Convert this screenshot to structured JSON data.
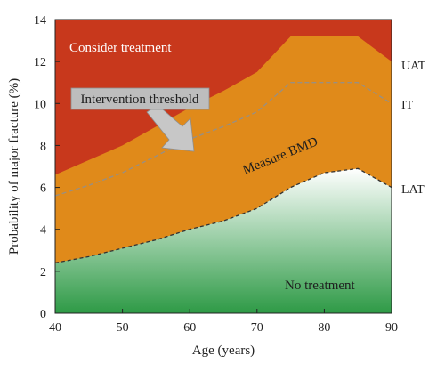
{
  "chart_data": {
    "type": "area",
    "title": "",
    "xlabel": "Age (years)",
    "ylabel": "Probability of major fracture (%)",
    "xlim": [
      40,
      90
    ],
    "ylim": [
      0,
      14
    ],
    "x_ticks": [
      40,
      50,
      60,
      70,
      80,
      90
    ],
    "y_ticks": [
      0,
      2,
      4,
      6,
      8,
      10,
      12,
      14
    ],
    "grid": false,
    "series": [
      {
        "name": "LAT",
        "x": [
          40,
          45,
          50,
          55,
          60,
          65,
          70,
          75,
          80,
          85,
          90
        ],
        "values": [
          2.4,
          2.7,
          3.1,
          3.5,
          4.0,
          4.4,
          5.0,
          6.0,
          6.7,
          6.9,
          6.0
        ]
      },
      {
        "name": "IT",
        "x": [
          40,
          45,
          50,
          55,
          60,
          65,
          70,
          75,
          80,
          85,
          90
        ],
        "values": [
          5.6,
          6.1,
          6.7,
          7.5,
          8.3,
          8.9,
          9.6,
          11.0,
          11.0,
          11.0,
          10.0
        ]
      },
      {
        "name": "UAT",
        "x": [
          40,
          45,
          50,
          55,
          60,
          65,
          70,
          75,
          80,
          85,
          90
        ],
        "values": [
          6.6,
          7.3,
          8.0,
          8.9,
          9.8,
          10.6,
          11.5,
          13.2,
          13.2,
          13.2,
          12.0
        ]
      }
    ],
    "zones": {
      "consider_treatment": "Consider treatment",
      "measure_bmd": "Measure BMD",
      "no_treatment": "No treatment"
    },
    "annotation": {
      "text": "Intervention threshold"
    },
    "right_labels": {
      "uat": "UAT",
      "it": "IT",
      "lat": "LAT"
    },
    "colors": {
      "consider_treatment": "#c8381c",
      "measure_bmd": "#e08a1a",
      "no_treatment_top": "#ffffff",
      "no_treatment_bottom": "#2e9a46",
      "threshold_line_lat": "#333333",
      "threshold_line_it": "#9a8f80",
      "annotation_box": "#bdbdbd",
      "annotation_arrow": "#c7c7c7"
    }
  }
}
